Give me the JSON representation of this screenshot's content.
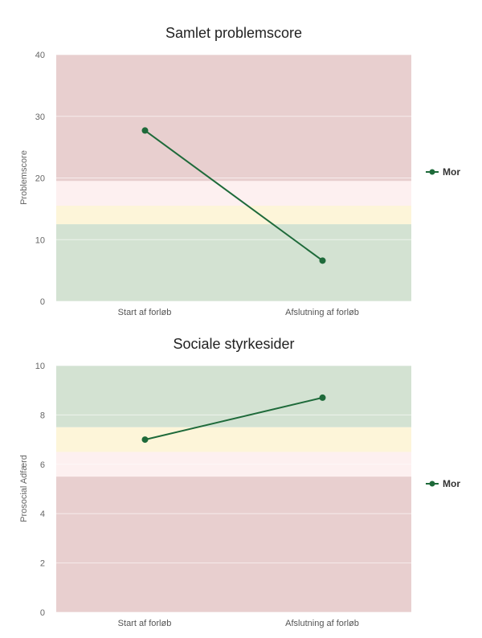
{
  "chart_data": [
    {
      "type": "line",
      "title": "Samlet problemscore",
      "xlabel": "",
      "ylabel": "Problemscore",
      "categories": [
        "Start af forløb",
        "Afslutning af forløb"
      ],
      "ylim": [
        0,
        40
      ],
      "yticks": [
        0,
        10,
        20,
        30,
        40
      ],
      "grid": true,
      "legend_position": "right",
      "bands": [
        {
          "from": 19.5,
          "to": 40,
          "color": "#e8cfcf"
        },
        {
          "from": 15.5,
          "to": 19.5,
          "color": "#fdf0f0"
        },
        {
          "from": 12.5,
          "to": 15.5,
          "color": "#fdf5d9"
        },
        {
          "from": 0,
          "to": 12.5,
          "color": "#d3e2d2"
        }
      ],
      "series": [
        {
          "name": "Mor",
          "values": [
            27.7,
            6.6
          ],
          "color": "#1e6a3a"
        }
      ]
    },
    {
      "type": "line",
      "title": "Sociale styrkesider",
      "xlabel": "",
      "ylabel": "Prosocial Adfærd",
      "categories": [
        "Start af forløb",
        "Afslutning af forløb"
      ],
      "ylim": [
        0,
        10
      ],
      "yticks": [
        0,
        2,
        4,
        6,
        8,
        10
      ],
      "grid": true,
      "legend_position": "right",
      "bands": [
        {
          "from": 7.5,
          "to": 10,
          "color": "#d3e2d2"
        },
        {
          "from": 6.5,
          "to": 7.5,
          "color": "#fdf5d9"
        },
        {
          "from": 5.5,
          "to": 6.5,
          "color": "#fdf0f0"
        },
        {
          "from": 0,
          "to": 5.5,
          "color": "#e8cfcf"
        }
      ],
      "series": [
        {
          "name": "Mor",
          "values": [
            7.0,
            8.7
          ],
          "color": "#1e6a3a"
        }
      ]
    }
  ]
}
